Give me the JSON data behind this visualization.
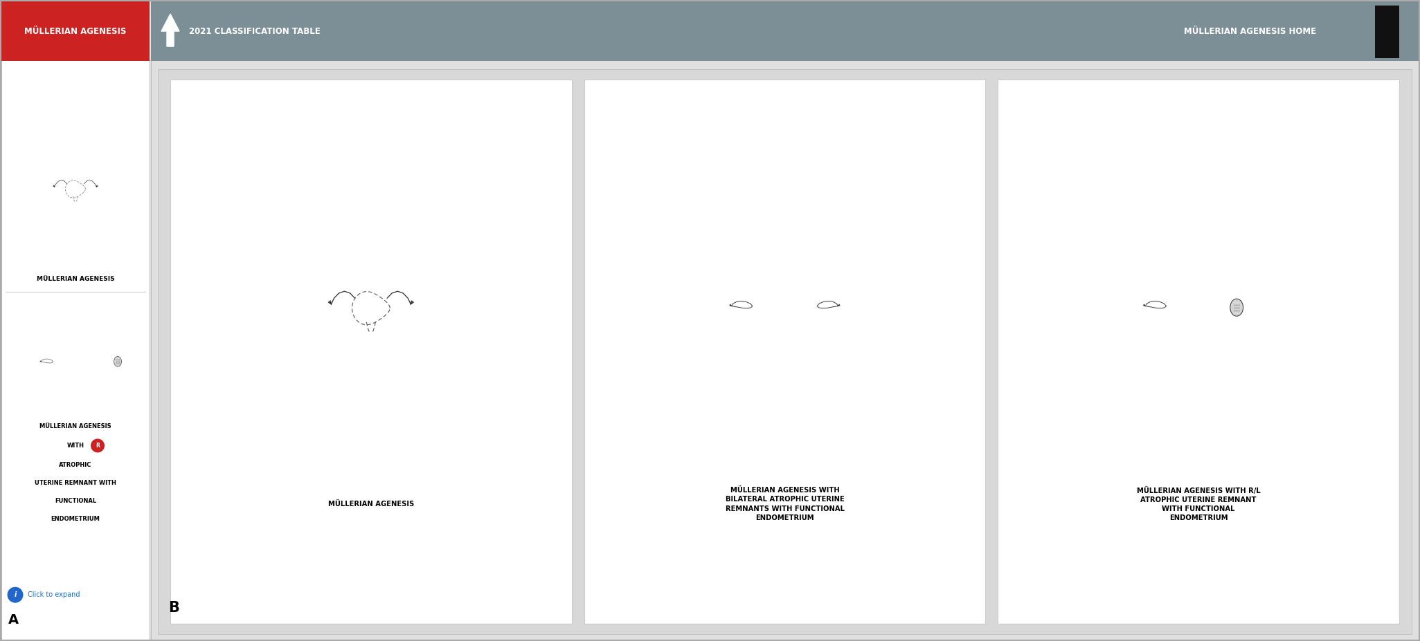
{
  "fig_width": 20.51,
  "fig_height": 9.27,
  "bg_color": "#e2e2e2",
  "left_panel": {
    "header_color": "#cc2222",
    "header_text": "MÜLLERIAN AGENESIS",
    "header_text_color": "#ffffff",
    "text1": "MÜLLERIAN AGENESIS",
    "text2_lines": [
      "MÜLLERIAN AGENESIS",
      "WITH",
      "ATROPHIC",
      "UTERINE REMNANT WITH",
      "FUNCTIONAL",
      "ENDOMETRIUM"
    ],
    "r_label": "R",
    "click_text": "Click to expand",
    "click_color": "#1a6fcc",
    "info_circle_color": "#2266cc",
    "r_circle_color": "#cc2222",
    "label_A": "A"
  },
  "right_panel": {
    "header_color": "#7d8f96",
    "header_text_left": "2021 CLASSIFICATION TABLE",
    "header_text_right": "MÜLLERIAN AGENESIS HOME",
    "header_text_color": "#ffffff",
    "label_B": "B",
    "cards": [
      {
        "title": "MÜLLERIAN AGENESIS"
      },
      {
        "title": "MÜLLERIAN AGENESIS WITH\nBILATERAL ATROPHIC UTERINE\nREMNANTS WITH FUNCTIONAL\nENDOMETRIUM"
      },
      {
        "title": "MÜLLERIAN AGENESIS WITH R/L\nATROPHIC UTERINE REMNANT\nWITH FUNCTIONAL\nENDOMETRIUM"
      }
    ]
  }
}
